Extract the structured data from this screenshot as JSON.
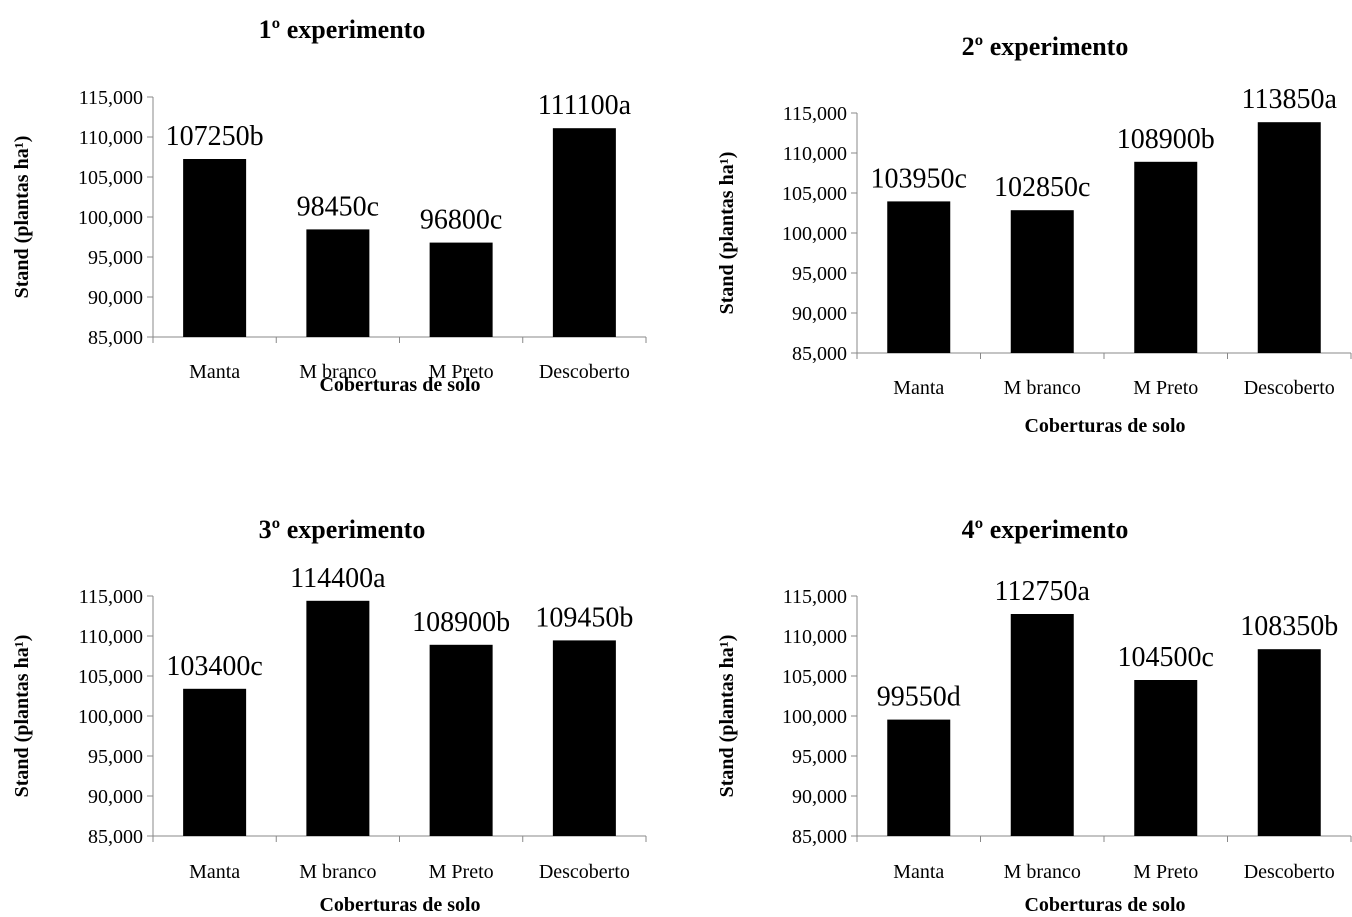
{
  "chart_data": [
    {
      "type": "bar",
      "title": "1º experimento",
      "xlabel": "Coberturas de solo",
      "ylabel": "Stand (plantas ha¹)",
      "ylim": [
        85000,
        115000
      ],
      "yticks": [
        "85,000",
        "90,000",
        "95,000",
        "100,000",
        "105,000",
        "110,000",
        "115,000"
      ],
      "categories": [
        "Manta",
        "M branco",
        "M Preto",
        "Descoberto"
      ],
      "values": [
        107250,
        98450,
        96800,
        111100
      ],
      "data_labels": [
        "107250b",
        "98450c",
        "96800c",
        "111100a"
      ],
      "bar_color": "#000000",
      "grid": false,
      "legend": "none"
    },
    {
      "type": "bar",
      "title": "2º experimento",
      "xlabel": "Coberturas de solo",
      "ylabel": "Stand (plantas ha¹)",
      "ylim": [
        85000,
        115000
      ],
      "yticks": [
        "85,000",
        "90,000",
        "95,000",
        "100,000",
        "105,000",
        "110,000",
        "115,000"
      ],
      "categories": [
        "Manta",
        "M branco",
        "M Preto",
        "Descoberto"
      ],
      "values": [
        103950,
        102850,
        108900,
        113850
      ],
      "data_labels": [
        "103950c",
        "102850c",
        "108900b",
        "113850a"
      ],
      "bar_color": "#000000",
      "grid": false,
      "legend": "none"
    },
    {
      "type": "bar",
      "title": "3º experimento",
      "xlabel": "Coberturas de solo",
      "ylabel": "Stand (plantas ha¹)",
      "ylim": [
        85000,
        115000
      ],
      "yticks": [
        "85,000",
        "90,000",
        "95,000",
        "100,000",
        "105,000",
        "110,000",
        "115,000"
      ],
      "categories": [
        "Manta",
        "M branco",
        "M Preto",
        "Descoberto"
      ],
      "values": [
        103400,
        114400,
        108900,
        109450
      ],
      "data_labels": [
        "103400c",
        "114400a",
        "108900b",
        "109450b"
      ],
      "bar_color": "#000000",
      "grid": false,
      "legend": "none"
    },
    {
      "type": "bar",
      "title": "4º experimento",
      "xlabel": "Coberturas de solo",
      "ylabel": "Stand (plantas ha¹)",
      "ylim": [
        85000,
        115000
      ],
      "yticks": [
        "85,000",
        "90,000",
        "95,000",
        "100,000",
        "105,000",
        "110,000",
        "115,000"
      ],
      "categories": [
        "Manta",
        "M branco",
        "M Preto",
        "Descoberto"
      ],
      "values": [
        99550,
        112750,
        104500,
        108350
      ],
      "data_labels": [
        "99550d",
        "112750a",
        "104500c",
        "108350b"
      ],
      "bar_color": "#000000",
      "grid": false,
      "legend": "none"
    }
  ]
}
